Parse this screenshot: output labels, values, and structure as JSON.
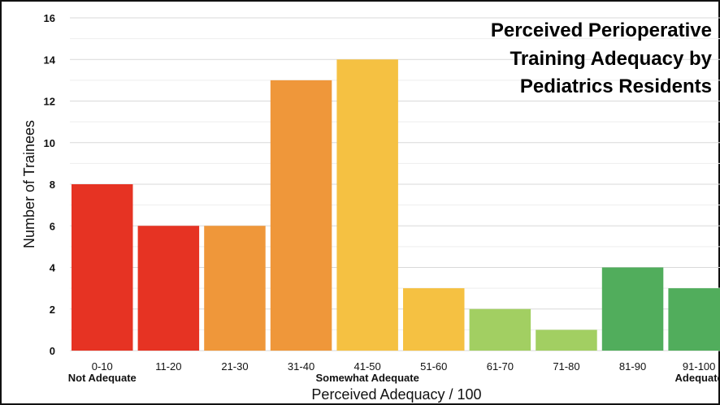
{
  "chart_data": {
    "type": "bar",
    "title_lines": [
      "Perceived Perioperative",
      "Training Adequacy by",
      "Pediatrics Residents"
    ],
    "xlabel": "Perceived Adequacy / 100",
    "ylabel": "Number of Trainees",
    "categories": [
      "0-10",
      "11-20",
      "21-30",
      "31-40",
      "41-50",
      "51-60",
      "61-70",
      "71-80",
      "81-90",
      "91-100"
    ],
    "values": [
      8,
      6,
      6,
      13,
      14,
      3,
      2,
      1,
      4,
      3
    ],
    "colors": [
      "#e63323",
      "#e63323",
      "#ef973a",
      "#ef973a",
      "#f5c142",
      "#f5c142",
      "#a2cf62",
      "#a2cf62",
      "#51ad5c",
      "#51ad5c"
    ],
    "ylim": [
      0,
      16
    ],
    "yticks": [
      0,
      2,
      4,
      6,
      8,
      10,
      12,
      14,
      16
    ],
    "grid": true,
    "group_labels": [
      {
        "text": "Not Adequate",
        "under": "0-10"
      },
      {
        "text": "Somewhat Adequate",
        "under": "41-50"
      },
      {
        "text": "Adequate",
        "under": "91-100"
      }
    ]
  }
}
